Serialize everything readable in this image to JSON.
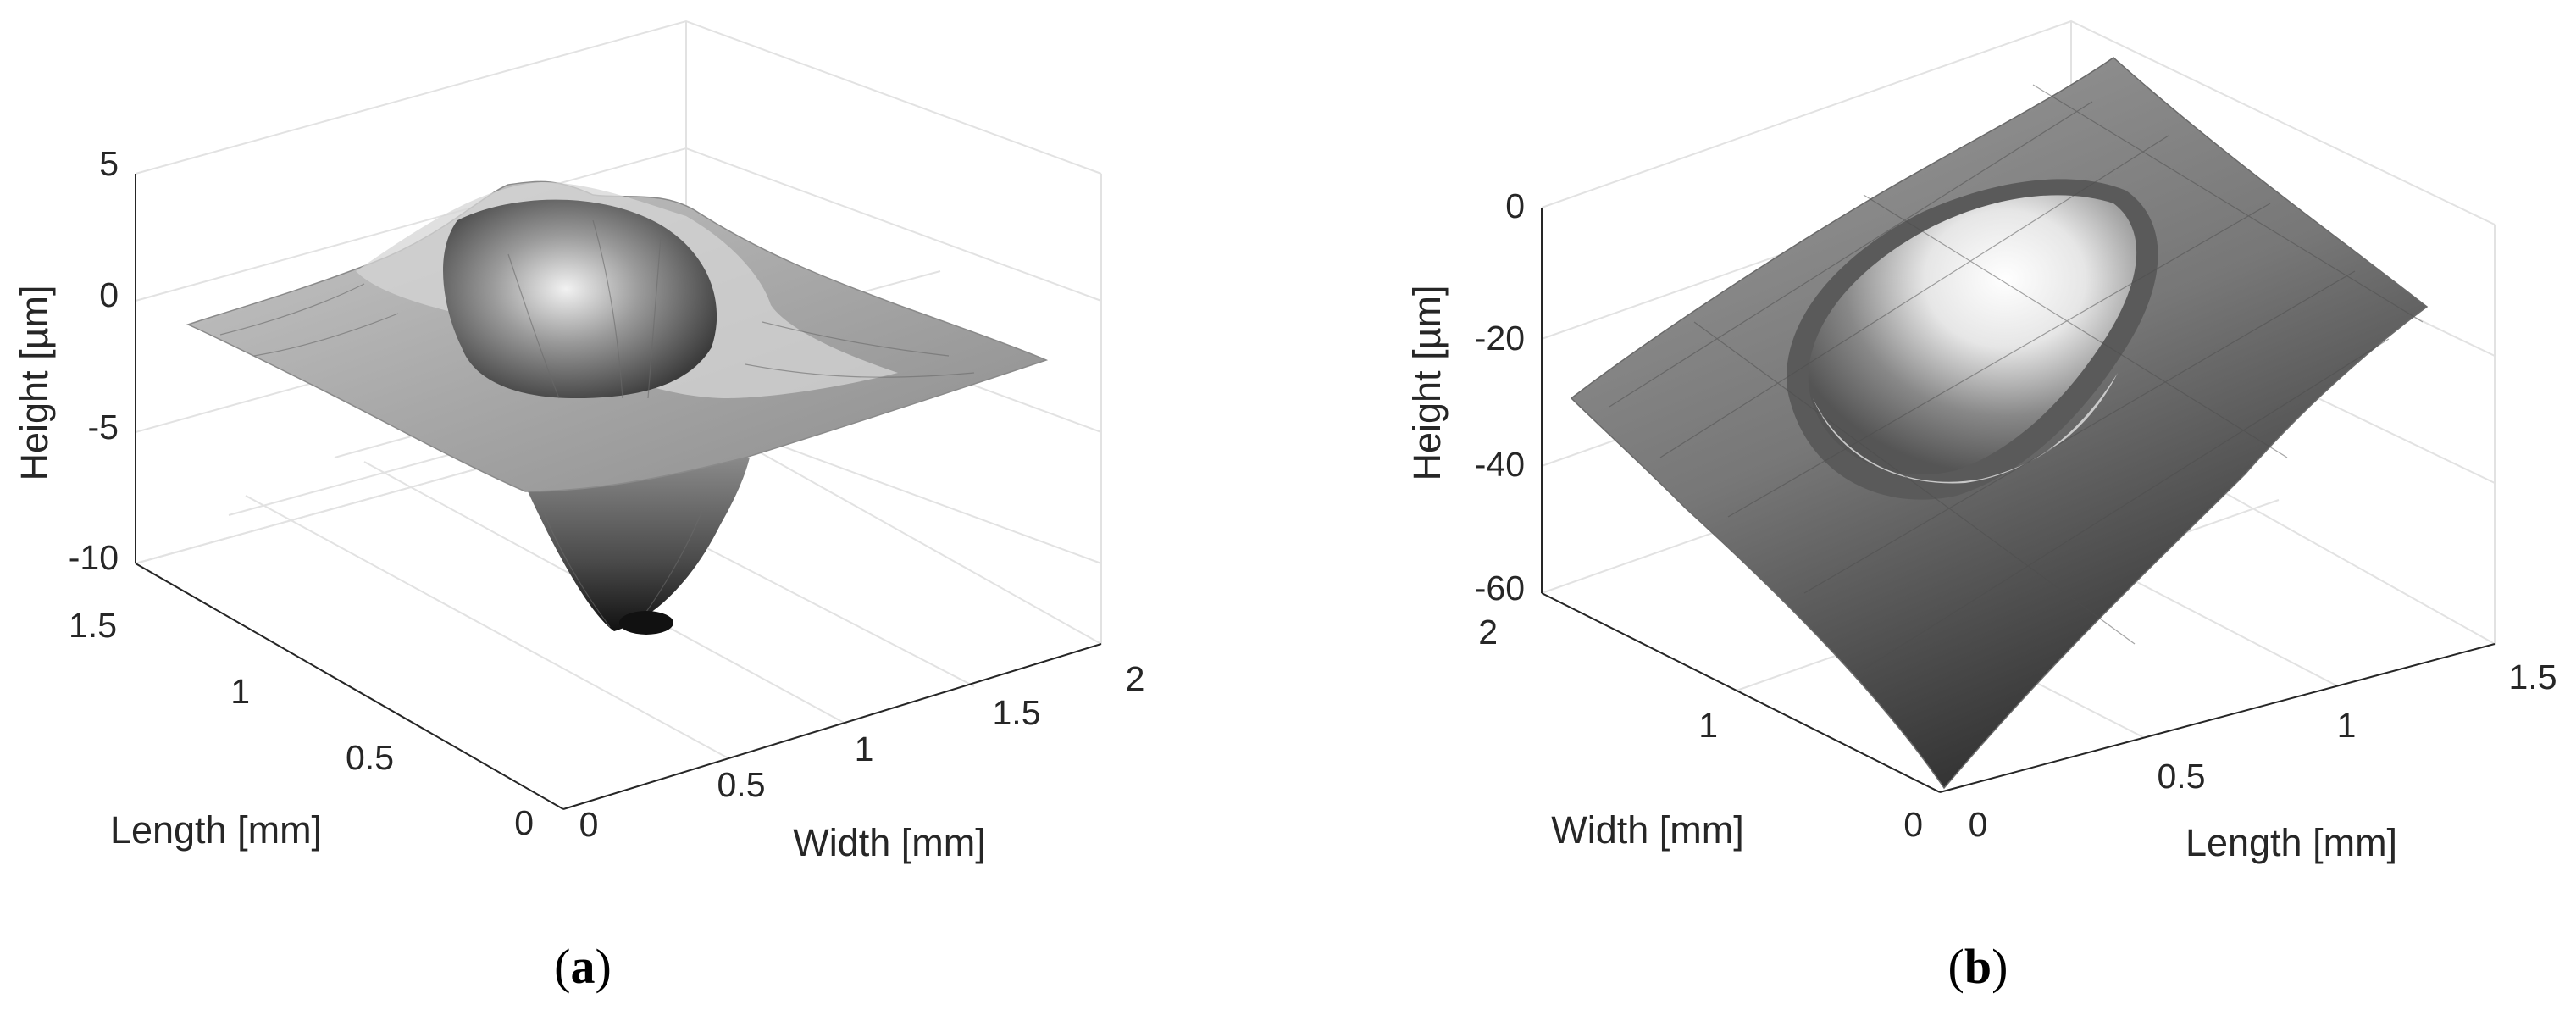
{
  "chart_data": [
    {
      "type": "surface3d",
      "panel_label": "a",
      "title": "",
      "xlabel": "Width [mm]",
      "ylabel": "Length [mm]",
      "zlabel": "Height [µm]",
      "xlim": [
        0,
        2
      ],
      "ylim": [
        0,
        1.5
      ],
      "zlim": [
        -10,
        5
      ],
      "x_ticks": [
        "0",
        "0.5",
        "1",
        "1.5",
        "2"
      ],
      "y_ticks": [
        "0",
        "0.5",
        "1",
        "1.5"
      ],
      "z_ticks": [
        "-10",
        "-5",
        "0",
        "5"
      ],
      "grid": true,
      "colormap": "gray",
      "features": {
        "pit_center": [
          1.0,
          0.75
        ],
        "pit_min_depth_um": -9.5,
        "rim_max_height_um": 4.5,
        "plane_height_um": 0
      }
    },
    {
      "type": "surface3d",
      "panel_label": "b",
      "title": "",
      "xlabel": "Width [mm]",
      "ylabel": "Length [mm]",
      "zlabel": "Height [µm]",
      "xlim": [
        0,
        2
      ],
      "ylim": [
        0,
        1.5
      ],
      "zlim": [
        -60,
        5
      ],
      "x_ticks": [
        "0",
        "1",
        "2"
      ],
      "y_ticks": [
        "0",
        "0.5",
        "1",
        "1.5"
      ],
      "z_ticks": [
        "-60",
        "-40",
        "-20",
        "0"
      ],
      "grid": true,
      "colormap": "gray",
      "features": {
        "pit_center": [
          1.0,
          0.9
        ],
        "tilted_surface": true,
        "lowest_corner_um": -60,
        "highest_corner_um": 5
      }
    }
  ]
}
